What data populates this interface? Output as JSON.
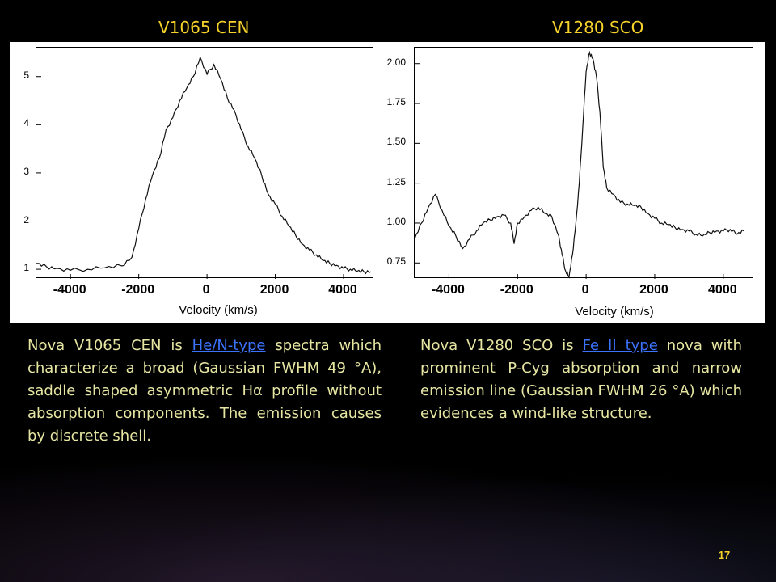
{
  "page_number": "17",
  "chart_data": [
    {
      "type": "line",
      "title": "V1065 CEN",
      "xlabel": "Velocity (km/s)",
      "ylabel": "",
      "xlim": [
        -5000,
        4900
      ],
      "ylim": [
        0.8,
        5.6
      ],
      "xticks": [
        "-4000",
        "-2000",
        "0",
        "2000",
        "4000"
      ],
      "xtick_values": [
        -4000,
        -2000,
        0,
        2000,
        4000
      ],
      "yticks": [
        "1",
        "2",
        "3",
        "4",
        "5"
      ],
      "ytick_values": [
        1,
        2,
        3,
        4,
        5
      ],
      "grid": false,
      "series": [
        {
          "x": [
            -5000,
            -4700,
            -4400,
            -4000,
            -3500,
            -3000,
            -2500,
            -2200,
            -2000,
            -1800,
            -1600,
            -1400,
            -1200,
            -1000,
            -800,
            -600,
            -400,
            -200,
            0,
            200,
            400,
            600,
            800,
            1000,
            1200,
            1400,
            1600,
            1800,
            2000,
            2200,
            2400,
            2600,
            2800,
            3000,
            3200,
            3400,
            3600,
            3800,
            4000,
            4200,
            4400,
            4600,
            4800
          ],
          "y": [
            1.12,
            1.05,
            1.02,
            0.98,
            1.0,
            1.03,
            1.07,
            1.25,
            1.85,
            2.45,
            2.95,
            3.3,
            3.9,
            4.15,
            4.5,
            4.75,
            5.0,
            5.4,
            5.05,
            5.25,
            4.95,
            4.55,
            4.3,
            3.9,
            3.55,
            3.3,
            2.95,
            2.55,
            2.35,
            2.1,
            1.9,
            1.7,
            1.52,
            1.4,
            1.3,
            1.18,
            1.12,
            1.08,
            1.02,
            1.0,
            0.96,
            0.95,
            0.95
          ]
        }
      ]
    },
    {
      "type": "line",
      "title": "V1280 SCO",
      "xlabel": "Velocity (km/s)",
      "ylabel": "",
      "xlim": [
        -5000,
        4900
      ],
      "ylim": [
        0.65,
        2.1
      ],
      "xticks": [
        "-4000",
        "-2000",
        "0",
        "2000",
        "4000"
      ],
      "xtick_values": [
        -4000,
        -2000,
        0,
        2000,
        4000
      ],
      "yticks": [
        "0.75",
        "1.00",
        "1.25",
        "1.50",
        "1.75",
        "2.00"
      ],
      "ytick_values": [
        0.75,
        1.0,
        1.25,
        1.5,
        1.75,
        2.0
      ],
      "grid": false,
      "series": [
        {
          "x": [
            -5000,
            -4800,
            -4600,
            -4400,
            -4200,
            -4000,
            -3800,
            -3600,
            -3400,
            -3200,
            -3000,
            -2800,
            -2600,
            -2400,
            -2200,
            -2100,
            -2000,
            -1800,
            -1600,
            -1400,
            -1200,
            -1000,
            -800,
            -700,
            -600,
            -500,
            -400,
            -300,
            -200,
            -100,
            0,
            100,
            200,
            300,
            400,
            500,
            600,
            800,
            1000,
            1200,
            1400,
            1600,
            1800,
            2000,
            2200,
            2400,
            2600,
            2800,
            3000,
            3200,
            3400,
            3600,
            3800,
            4000,
            4200,
            4400,
            4600
          ],
          "y": [
            0.9,
            1.0,
            1.1,
            1.18,
            1.08,
            0.98,
            0.92,
            0.84,
            0.9,
            0.95,
            1.0,
            1.02,
            1.04,
            1.05,
            1.0,
            0.87,
            1.0,
            1.04,
            1.08,
            1.1,
            1.06,
            1.04,
            0.92,
            0.8,
            0.7,
            0.66,
            0.8,
            1.0,
            1.25,
            1.6,
            1.95,
            2.07,
            2.03,
            1.92,
            1.7,
            1.35,
            1.22,
            1.18,
            1.13,
            1.12,
            1.11,
            1.1,
            1.06,
            1.03,
            1.0,
            0.99,
            0.97,
            0.96,
            0.95,
            0.93,
            0.92,
            0.94,
            0.95,
            0.95,
            0.96,
            0.93,
            0.95
          ]
        }
      ]
    }
  ],
  "descriptions": [
    {
      "before": "Nova V1065 CEN is ",
      "link": "He/N-type",
      "after": " spectra which characterize a broad (Gaussian FWHM 49 °A), saddle shaped asymmetric Hα profile without absorption components. The emission causes by discrete shell."
    },
    {
      "before": "Nova V1280 SCO is ",
      "link": "Fe II type",
      "after": " nova with prominent P-Cyg absorption and narrow emission line (Gaussian FWHM 26 °A) which evidences a wind-like structure."
    }
  ]
}
